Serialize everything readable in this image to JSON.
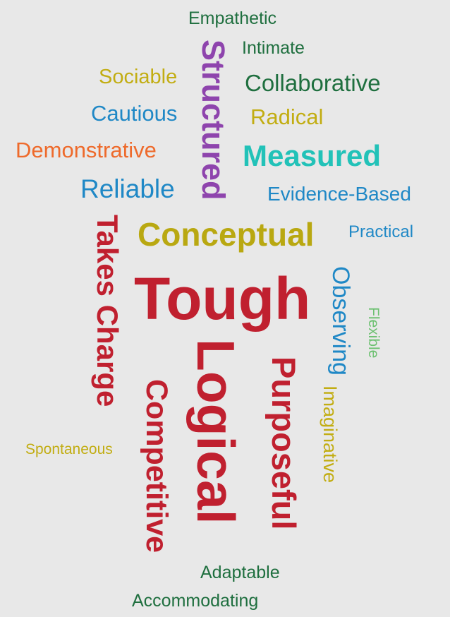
{
  "colors": {
    "background": "#e8e8e8",
    "dark_green": "#1f6f3f",
    "purple": "#8e44ad",
    "olive": "#c2ad12",
    "blue": "#1f88c6",
    "orange": "#ee6a2b",
    "teal": "#22c2b8",
    "crimson": "#c0202f",
    "light_green": "#6cc070"
  },
  "words": [
    {
      "text": "Empathetic",
      "color": "#1f6f3f"
    },
    {
      "text": "Intimate",
      "color": "#1f6f3f"
    },
    {
      "text": "Structured",
      "color": "#8e44ad"
    },
    {
      "text": "Sociable",
      "color": "#c2ad12"
    },
    {
      "text": "Collaborative",
      "color": "#1f6f3f"
    },
    {
      "text": "Cautious",
      "color": "#1f88c6"
    },
    {
      "text": "Radical",
      "color": "#c2ad12"
    },
    {
      "text": "Demonstrative",
      "color": "#ee6a2b"
    },
    {
      "text": "Measured",
      "color": "#22c2b8"
    },
    {
      "text": "Reliable",
      "color": "#1f88c6"
    },
    {
      "text": "Evidence-Based",
      "color": "#1f88c6"
    },
    {
      "text": "Takes Charge",
      "color": "#c0202f"
    },
    {
      "text": "Conceptual",
      "color": "#b9a811"
    },
    {
      "text": "Practical",
      "color": "#1f88c6"
    },
    {
      "text": "Tough",
      "color": "#c0202f"
    },
    {
      "text": "Observing",
      "color": "#1f88c6"
    },
    {
      "text": "Flexible",
      "color": "#6cc070"
    },
    {
      "text": "Logical",
      "color": "#c0202f"
    },
    {
      "text": "Purposeful",
      "color": "#c0202f"
    },
    {
      "text": "Competitive",
      "color": "#c0202f"
    },
    {
      "text": "Imaginative",
      "color": "#c2ad12"
    },
    {
      "text": "Spontaneous",
      "color": "#c2ad12"
    },
    {
      "text": "Adaptable",
      "color": "#1f6f3f"
    },
    {
      "text": "Accommodating",
      "color": "#1f6f3f"
    }
  ]
}
